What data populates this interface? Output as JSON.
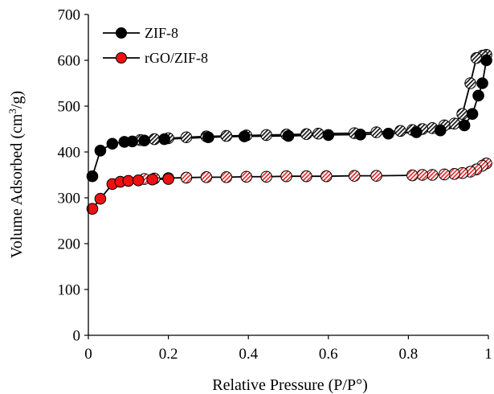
{
  "chart_data": {
    "type": "scatter",
    "xlabel": "Relative Pressure (P/P°)",
    "ylabel_main": "Volume Adsorbed (cm",
    "ylabel_sup": "3",
    "ylabel_tail": "/g)",
    "xlim": [
      0,
      1
    ],
    "ylim": [
      0,
      700
    ],
    "x_ticks": [
      0,
      0.2,
      0.4,
      0.6,
      0.8,
      1
    ],
    "x_tick_labels": [
      "0",
      "0.2",
      "0.4",
      "0.6",
      "0.8",
      "1"
    ],
    "y_ticks": [
      0,
      100,
      200,
      300,
      400,
      500,
      600,
      700
    ],
    "y_tick_labels": [
      "0",
      "100",
      "200",
      "300",
      "400",
      "500",
      "600",
      "700"
    ],
    "grid": false,
    "legend_position": "top-left",
    "series": [
      {
        "name": "ZIF-8",
        "color": "#000000",
        "adsorption": {
          "x": [
            0.01,
            0.03,
            0.06,
            0.09,
            0.11,
            0.14,
            0.19,
            0.3,
            0.39,
            0.5,
            0.6,
            0.68,
            0.75,
            0.82,
            0.88,
            0.94,
            0.96,
            0.975,
            0.985,
            0.995
          ],
          "y": [
            347,
            403,
            418,
            422,
            423,
            425,
            428,
            432,
            434,
            435,
            437,
            438,
            440,
            443,
            447,
            458,
            483,
            523,
            550,
            600
          ]
        },
        "desorption": {
          "x": [
            0.995,
            0.985,
            0.97,
            0.955,
            0.935,
            0.915,
            0.89,
            0.86,
            0.835,
            0.81,
            0.78,
            0.72,
            0.665,
            0.575,
            0.545,
            0.495,
            0.445,
            0.395,
            0.345,
            0.295,
            0.245,
            0.2,
            0.165,
            0.13
          ],
          "y": [
            612,
            610,
            605,
            550,
            483,
            462,
            458,
            452,
            450,
            448,
            446,
            443,
            441,
            440,
            439,
            438,
            437,
            436,
            435,
            434,
            432,
            430,
            428,
            426
          ]
        }
      },
      {
        "name": "rGO/ZIF-8",
        "color": "#ee1111",
        "adsorption": {
          "x": [
            0.01,
            0.03,
            0.06,
            0.08,
            0.1,
            0.125,
            0.16,
            0.2
          ],
          "y": [
            276,
            298,
            330,
            335,
            337,
            338,
            340,
            341
          ]
        },
        "desorption": {
          "x": [
            0.995,
            0.985,
            0.97,
            0.955,
            0.935,
            0.915,
            0.89,
            0.86,
            0.835,
            0.81,
            0.72,
            0.665,
            0.595,
            0.545,
            0.495,
            0.445,
            0.395,
            0.345,
            0.295,
            0.245,
            0.2,
            0.165,
            0.14
          ],
          "y": [
            375,
            370,
            362,
            357,
            354,
            352,
            351,
            350,
            350,
            349,
            348,
            348,
            347,
            347,
            347,
            346,
            346,
            345,
            345,
            344,
            343,
            342,
            341
          ]
        }
      }
    ]
  }
}
